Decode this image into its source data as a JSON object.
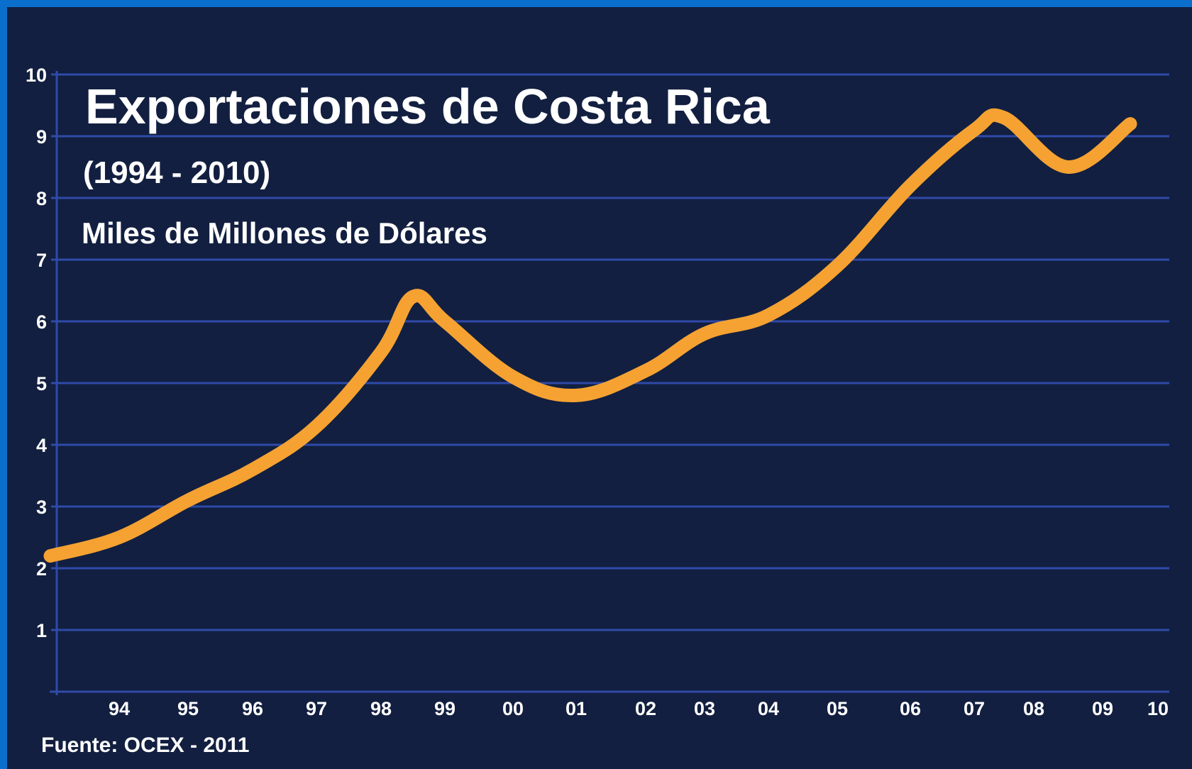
{
  "chart_data": {
    "type": "line",
    "title": "Exportaciones de Costa Rica",
    "subtitle": "(1994 - 2010)",
    "ylabel": "Miles de Millones de Dólares",
    "source": "Fuente: OCEX - 2011",
    "x_tick_labels": [
      "94",
      "95",
      "96",
      "97",
      "98",
      "99",
      "00",
      "01",
      "02",
      "03",
      "04",
      "05",
      "06",
      "07",
      "08",
      "09",
      "10"
    ],
    "y_ticks": [
      "1",
      "2",
      "3",
      "4",
      "5",
      "6",
      "7",
      "8",
      "9",
      "10"
    ],
    "ylim": [
      0,
      10
    ],
    "grid": true,
    "series": [
      {
        "color": "#f5a232",
        "points": [
          {
            "x": "93",
            "y": 2.2
          },
          {
            "x": "94",
            "y": 2.5
          },
          {
            "x": "95",
            "y": 3.1
          },
          {
            "x": "96",
            "y": 3.6
          },
          {
            "x": "97",
            "y": 4.3
          },
          {
            "x": "98",
            "y": 5.5
          },
          {
            "x": "98.5",
            "y": 6.4
          },
          {
            "x": "99",
            "y": 6.0
          },
          {
            "x": "00",
            "y": 5.1
          },
          {
            "x": "01",
            "y": 4.8
          },
          {
            "x": "02",
            "y": 5.2
          },
          {
            "x": "03",
            "y": 5.8
          },
          {
            "x": "04",
            "y": 6.1
          },
          {
            "x": "05",
            "y": 6.9
          },
          {
            "x": "06",
            "y": 8.2
          },
          {
            "x": "07",
            "y": 9.1
          },
          {
            "x": "07.5",
            "y": 9.3
          },
          {
            "x": "08.5",
            "y": 8.5
          },
          {
            "x": "09.5",
            "y": 9.2
          }
        ]
      }
    ]
  },
  "colors": {
    "frame_border": "#0a6fcc",
    "background": "#121f40",
    "grid": "#2f4aa8",
    "line": "#f5a232",
    "text": "#ffffff"
  }
}
